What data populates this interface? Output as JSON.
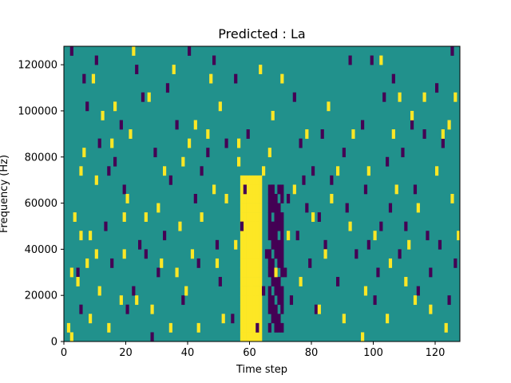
{
  "chart_data": {
    "type": "heatmap",
    "title": "Predicted : La",
    "xlabel": "Time step",
    "ylabel": "Frequency (Hz)",
    "xlim": [
      0,
      128
    ],
    "ylim": [
      0,
      128000
    ],
    "x_ticks": [
      0,
      20,
      40,
      60,
      80,
      100,
      120
    ],
    "y_ticks": [
      0,
      20000,
      40000,
      60000,
      80000,
      100000,
      120000
    ],
    "x_tick_labels": [
      "0",
      "20",
      "40",
      "60",
      "80",
      "100",
      "120"
    ],
    "y_tick_labels": [
      "0",
      "20000",
      "40000",
      "60000",
      "80000",
      "100000",
      "120000"
    ],
    "grid": false,
    "colormap": {
      "low": "#440154",
      "mid": "#21918c",
      "high": "#fde725"
    },
    "background_value": "mid",
    "cells_high": [
      [
        1,
        4000
      ],
      [
        2,
        0
      ],
      [
        2,
        28000
      ],
      [
        3,
        52000
      ],
      [
        4,
        24000
      ],
      [
        5,
        44000
      ],
      [
        5,
        72000
      ],
      [
        6,
        80000
      ],
      [
        7,
        32000
      ],
      [
        8,
        8000
      ],
      [
        8,
        44000
      ],
      [
        9,
        112000
      ],
      [
        10,
        36000
      ],
      [
        10,
        68000
      ],
      [
        11,
        20000
      ],
      [
        12,
        96000
      ],
      [
        14,
        4000
      ],
      [
        15,
        84000
      ],
      [
        16,
        100000
      ],
      [
        18,
        16000
      ],
      [
        19,
        36000
      ],
      [
        19,
        52000
      ],
      [
        20,
        60000
      ],
      [
        21,
        88000
      ],
      [
        22,
        124000
      ],
      [
        23,
        16000
      ],
      [
        26,
        52000
      ],
      [
        27,
        104000
      ],
      [
        28,
        12000
      ],
      [
        30,
        56000
      ],
      [
        31,
        32000
      ],
      [
        32,
        72000
      ],
      [
        34,
        4000
      ],
      [
        35,
        116000
      ],
      [
        36,
        28000
      ],
      [
        37,
        48000
      ],
      [
        38,
        76000
      ],
      [
        39,
        20000
      ],
      [
        40,
        84000
      ],
      [
        41,
        36000
      ],
      [
        42,
        92000
      ],
      [
        43,
        4000
      ],
      [
        44,
        52000
      ],
      [
        46,
        88000
      ],
      [
        47,
        112000
      ],
      [
        48,
        64000
      ],
      [
        49,
        32000
      ],
      [
        50,
        100000
      ],
      [
        51,
        8000
      ],
      [
        52,
        60000
      ],
      [
        55,
        40000
      ],
      [
        56,
        84000
      ],
      [
        56,
        76000
      ],
      [
        60,
        20000
      ],
      [
        62,
        36000
      ],
      [
        63,
        116000
      ],
      [
        64,
        72000
      ],
      [
        66,
        80000
      ],
      [
        67,
        96000
      ],
      [
        68,
        28000
      ],
      [
        70,
        112000
      ],
      [
        72,
        44000
      ],
      [
        74,
        64000
      ],
      [
        76,
        24000
      ],
      [
        78,
        88000
      ],
      [
        80,
        52000
      ],
      [
        82,
        12000
      ],
      [
        84,
        36000
      ],
      [
        85,
        100000
      ],
      [
        86,
        60000
      ],
      [
        88,
        72000
      ],
      [
        90,
        8000
      ],
      [
        92,
        48000
      ],
      [
        93,
        88000
      ],
      [
        96,
        0
      ],
      [
        97,
        20000
      ],
      [
        98,
        72000
      ],
      [
        100,
        44000
      ],
      [
        102,
        120000
      ],
      [
        104,
        8000
      ],
      [
        105,
        32000
      ],
      [
        106,
        88000
      ],
      [
        107,
        64000
      ],
      [
        108,
        104000
      ],
      [
        110,
        24000
      ],
      [
        111,
        40000
      ],
      [
        112,
        96000
      ],
      [
        113,
        16000
      ],
      [
        114,
        56000
      ],
      [
        116,
        104000
      ],
      [
        118,
        12000
      ],
      [
        120,
        72000
      ],
      [
        122,
        88000
      ],
      [
        123,
        4000
      ],
      [
        124,
        92000
      ],
      [
        125,
        60000
      ],
      [
        126,
        104000
      ],
      [
        127,
        44000
      ]
    ],
    "cells_low": [
      [
        2,
        124000
      ],
      [
        4,
        28000
      ],
      [
        5,
        12000
      ],
      [
        6,
        112000
      ],
      [
        7,
        100000
      ],
      [
        10,
        120000
      ],
      [
        11,
        84000
      ],
      [
        13,
        48000
      ],
      [
        14,
        72000
      ],
      [
        15,
        32000
      ],
      [
        16,
        76000
      ],
      [
        18,
        92000
      ],
      [
        19,
        64000
      ],
      [
        20,
        12000
      ],
      [
        22,
        20000
      ],
      [
        23,
        116000
      ],
      [
        24,
        40000
      ],
      [
        25,
        104000
      ],
      [
        26,
        36000
      ],
      [
        28,
        0
      ],
      [
        29,
        80000
      ],
      [
        30,
        28000
      ],
      [
        32,
        44000
      ],
      [
        33,
        108000
      ],
      [
        34,
        68000
      ],
      [
        36,
        92000
      ],
      [
        38,
        16000
      ],
      [
        40,
        124000
      ],
      [
        42,
        60000
      ],
      [
        43,
        32000
      ],
      [
        44,
        72000
      ],
      [
        46,
        80000
      ],
      [
        48,
        120000
      ],
      [
        49,
        40000
      ],
      [
        50,
        24000
      ],
      [
        52,
        84000
      ],
      [
        54,
        8000
      ],
      [
        55,
        112000
      ],
      [
        57,
        48000
      ],
      [
        58,
        64000
      ],
      [
        59,
        88000
      ],
      [
        62,
        4000
      ],
      [
        64,
        20000
      ],
      [
        65,
        36000
      ],
      [
        66,
        56000
      ],
      [
        67,
        64000
      ],
      [
        68,
        48000
      ],
      [
        69,
        52000
      ],
      [
        70,
        40000
      ],
      [
        71,
        28000
      ],
      [
        72,
        60000
      ],
      [
        73,
        16000
      ],
      [
        74,
        104000
      ],
      [
        75,
        44000
      ],
      [
        76,
        84000
      ],
      [
        77,
        68000
      ],
      [
        78,
        56000
      ],
      [
        79,
        32000
      ],
      [
        80,
        72000
      ],
      [
        81,
        12000
      ],
      [
        82,
        52000
      ],
      [
        83,
        88000
      ],
      [
        84,
        40000
      ],
      [
        86,
        68000
      ],
      [
        88,
        24000
      ],
      [
        90,
        80000
      ],
      [
        91,
        56000
      ],
      [
        92,
        120000
      ],
      [
        94,
        36000
      ],
      [
        96,
        92000
      ],
      [
        97,
        64000
      ],
      [
        98,
        40000
      ],
      [
        99,
        120000
      ],
      [
        100,
        16000
      ],
      [
        101,
        28000
      ],
      [
        102,
        48000
      ],
      [
        103,
        104000
      ],
      [
        104,
        76000
      ],
      [
        105,
        56000
      ],
      [
        106,
        112000
      ],
      [
        108,
        36000
      ],
      [
        109,
        80000
      ],
      [
        110,
        48000
      ],
      [
        112,
        92000
      ],
      [
        113,
        64000
      ],
      [
        114,
        20000
      ],
      [
        116,
        88000
      ],
      [
        117,
        44000
      ],
      [
        118,
        28000
      ],
      [
        120,
        108000
      ],
      [
        121,
        40000
      ],
      [
        122,
        84000
      ],
      [
        124,
        16000
      ],
      [
        125,
        124000
      ],
      [
        126,
        32000
      ]
    ],
    "band_high": {
      "x_from": 57,
      "x_to": 63,
      "y_from": 0,
      "y_to": 68000
    },
    "band_low": {
      "x_from": 66,
      "x_to": 70,
      "y_from": 4000,
      "y_to": 64000
    }
  }
}
